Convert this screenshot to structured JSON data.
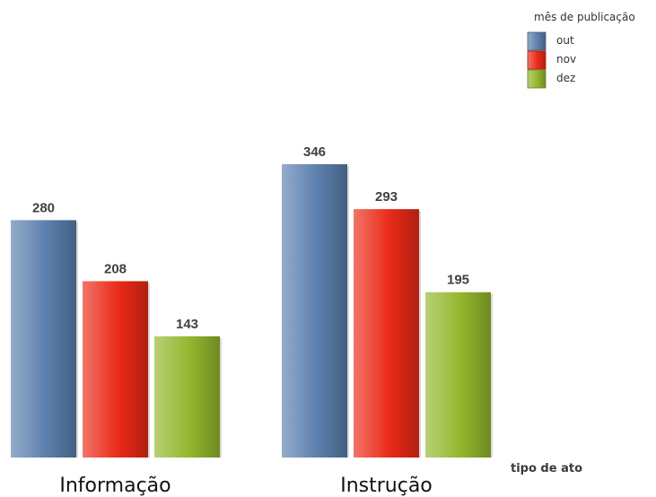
{
  "chart_data": {
    "type": "bar",
    "categories": [
      "Informação",
      "Instrução"
    ],
    "series": [
      {
        "name": "out",
        "values": [
          280,
          346
        ],
        "color": "#5b7fad"
      },
      {
        "name": "nov",
        "values": [
          208,
          293
        ],
        "color": "#ea2a18"
      },
      {
        "name": "dez",
        "values": [
          143,
          195
        ],
        "color": "#92b62c"
      }
    ],
    "xlabel": "tipo de ato",
    "ylabel": "",
    "ylim": [
      0,
      400
    ],
    "grid": false,
    "legend_title": "mês de publicação",
    "legend_position": "top-right"
  }
}
